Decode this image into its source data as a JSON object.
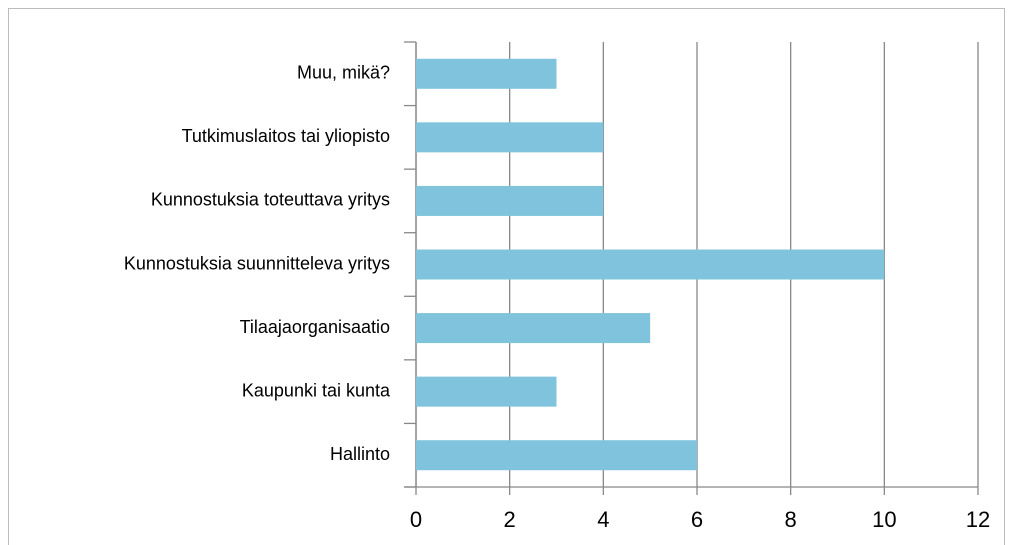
{
  "chart_data": {
    "type": "bar",
    "orientation": "horizontal",
    "categories": [
      "Hallinto",
      "Kaupunki tai kunta",
      "Tilaajaorganisaatio",
      "Kunnostuksia suunnitteleva yritys",
      "Kunnostuksia toteuttava yritys",
      "Tutkimuslaitos tai yliopisto",
      "Muu, mikä?"
    ],
    "values": [
      6,
      3,
      5,
      10,
      4,
      4,
      3
    ],
    "color": "#7fc4dc",
    "xlim": [
      0,
      12
    ],
    "xticks": [
      0,
      2,
      4,
      6,
      8,
      10,
      12
    ],
    "grid": true
  }
}
